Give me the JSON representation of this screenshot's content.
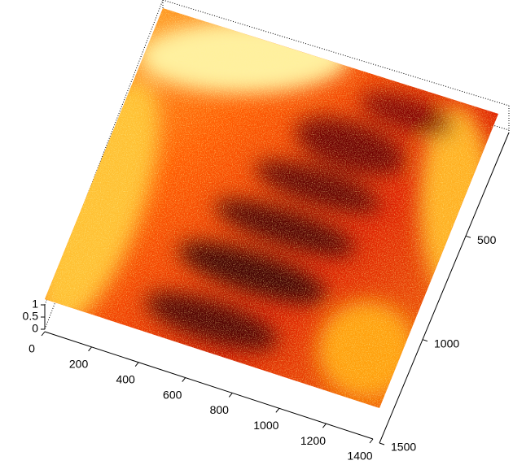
{
  "chart_data": {
    "type": "surface",
    "colormap": "hot",
    "xlim": [
      0,
      1400
    ],
    "xticks": [
      0,
      200,
      400,
      600,
      800,
      1000,
      1200,
      1400
    ],
    "ylim": [
      0,
      1500
    ],
    "yticks": [
      500,
      1000,
      1500
    ],
    "zlim": [
      0,
      1
    ],
    "zticks": [
      0,
      0.5,
      1
    ]
  }
}
